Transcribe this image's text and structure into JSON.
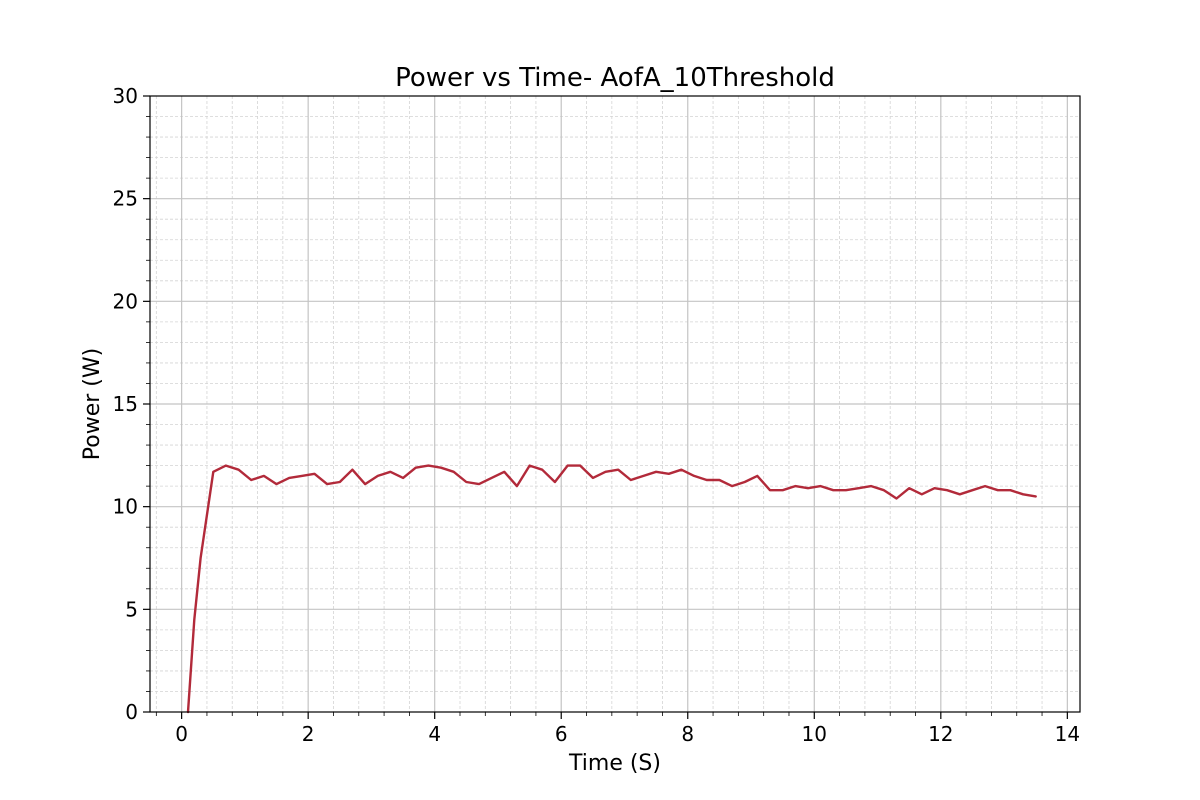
{
  "chart_data": {
    "type": "line",
    "title": "Power vs Time- AofA_10Threshold",
    "xlabel": "Time (S)",
    "ylabel": "Power (W)",
    "xlim": [
      -0.5,
      14.2
    ],
    "ylim": [
      0,
      30
    ],
    "xticks": [
      0,
      2,
      4,
      6,
      8,
      10,
      12,
      14
    ],
    "yticks": [
      0,
      5,
      10,
      15,
      20,
      25,
      30
    ],
    "grid": true,
    "line_color": "#b22a3a",
    "series": [
      {
        "x": [
          0.1,
          0.2,
          0.3,
          0.5,
          0.7,
          0.9,
          1.1,
          1.3,
          1.5,
          1.7,
          1.9,
          2.1,
          2.3,
          2.5,
          2.7,
          2.9,
          3.1,
          3.3,
          3.5,
          3.7,
          3.9,
          4.1,
          4.3,
          4.5,
          4.7,
          4.9,
          5.1,
          5.3,
          5.5,
          5.7,
          5.9,
          6.1,
          6.3,
          6.5,
          6.7,
          6.9,
          7.1,
          7.3,
          7.5,
          7.7,
          7.9,
          8.1,
          8.3,
          8.5,
          8.7,
          8.9,
          9.1,
          9.3,
          9.5,
          9.7,
          9.9,
          10.1,
          10.3,
          10.5,
          10.7,
          10.9,
          11.1,
          11.3,
          11.5,
          11.7,
          11.9,
          12.1,
          12.3,
          12.5,
          12.7,
          12.9,
          13.1,
          13.3,
          13.5
        ],
        "values": [
          0,
          4.5,
          7.5,
          11.7,
          12.0,
          11.8,
          11.3,
          11.5,
          11.1,
          11.4,
          11.5,
          11.6,
          11.1,
          11.2,
          11.8,
          11.1,
          11.5,
          11.7,
          11.4,
          11.9,
          12.0,
          11.9,
          11.7,
          11.2,
          11.1,
          11.4,
          11.7,
          11.0,
          12.0,
          11.8,
          11.2,
          12.0,
          12.0,
          11.4,
          11.7,
          11.8,
          11.3,
          11.5,
          11.7,
          11.6,
          11.8,
          11.5,
          11.3,
          11.3,
          11.0,
          11.2,
          11.5,
          10.8,
          10.8,
          11.0,
          10.9,
          11.0,
          10.8,
          10.8,
          10.9,
          11.0,
          10.8,
          10.4,
          10.9,
          10.6,
          10.9,
          10.8,
          10.6,
          10.8,
          11.0,
          10.8,
          10.8,
          10.6,
          10.5
        ]
      }
    ]
  }
}
